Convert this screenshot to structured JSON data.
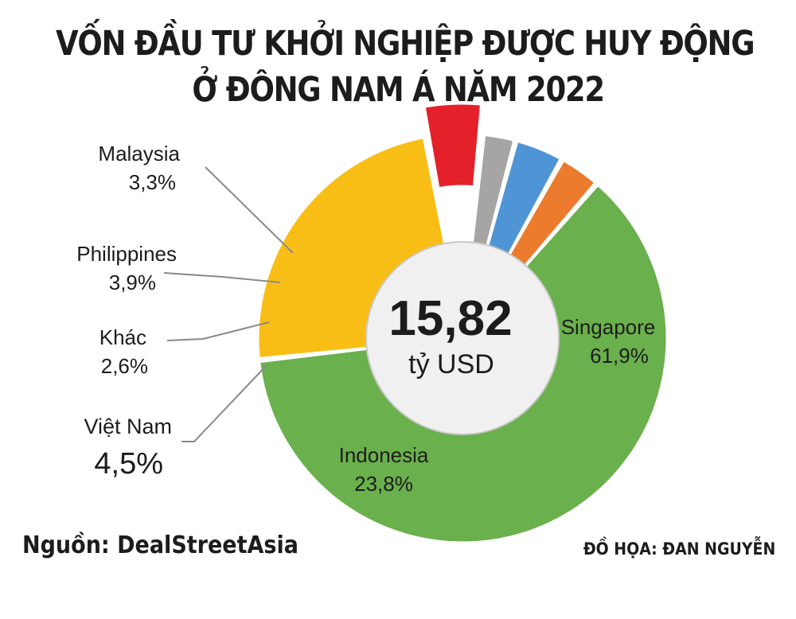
{
  "header": {
    "title_line1": "VỐN ĐẦU TƯ KHỞI NGHIỆP ĐƯỢC HUY ĐỘNG",
    "title_line2": "Ở ĐÔNG NAM Á NĂM 2022"
  },
  "chart_data": {
    "type": "pie",
    "center_value": "15,82",
    "center_unit": "tỷ USD",
    "slices": [
      {
        "name": "Singapore",
        "value": 61.9,
        "label": "61,9%",
        "color": "#6ab04c"
      },
      {
        "name": "Indonesia",
        "value": 23.8,
        "label": "23,8%",
        "color": "#f9be16"
      },
      {
        "name": "Việt Nam",
        "value": 4.5,
        "label": "4,5%",
        "color": "#e4202a",
        "exploded": true
      },
      {
        "name": "Khác",
        "value": 2.6,
        "label": "2,6%",
        "color": "#a7a4a4"
      },
      {
        "name": "Philippines",
        "value": 3.9,
        "label": "3,9%",
        "color": "#4f95d6"
      },
      {
        "name": "Malaysia",
        "value": 3.3,
        "label": "3,3%",
        "color": "#ec7b2e"
      }
    ]
  },
  "footer": {
    "source": "Nguồn: DealStreetAsia",
    "credit": "ĐỒ HỌA: ĐAN NGUYỄN"
  }
}
